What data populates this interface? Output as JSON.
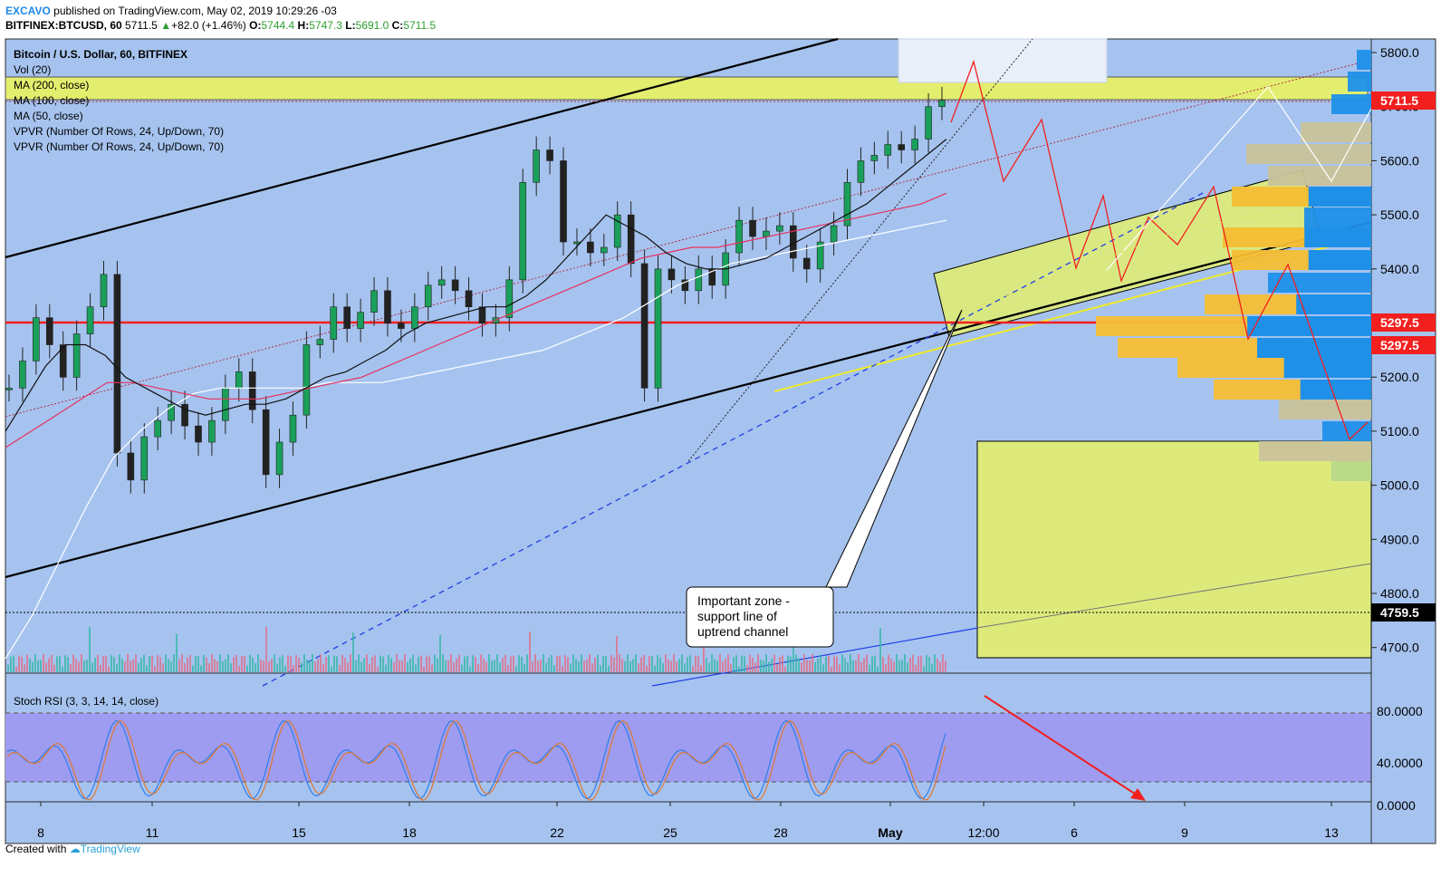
{
  "header": {
    "author": "EXCAVO",
    "published": "published on TradingView.com, May 02, 2019 10:29:26 -03",
    "symbol": "BITFINEX:BTCUSD, 60",
    "last": "5711.5",
    "change": "+82.0 (+1.46%)",
    "open_label": "O:",
    "open": "5744.4",
    "high_label": "H:",
    "high": "5747.3",
    "low_label": "L:",
    "low": "5691.0",
    "close_label": "C:",
    "close": "5711.5"
  },
  "legend": [
    "Bitcoin / U.S. Dollar, 60, BITFINEX",
    "Vol (20)",
    "MA (200, close)",
    "MA (100, close)",
    "MA (50, close)",
    "VPVR (Number Of Rows, 24, Up/Down, 70)",
    "VPVR (Number Of Rows, 24, Up/Down, 70)"
  ],
  "rsi_label": "Stoch RSI (3, 3, 14, 14, close)",
  "annotation": {
    "line1": "Important zone -",
    "line2": "support line of",
    "line3": "uptrend channel"
  },
  "price_tags": [
    {
      "value": "5711.5",
      "color": "#f21f1f"
    },
    {
      "value": "5297.5",
      "color": "#f21f1f"
    },
    {
      "value": "5297.5",
      "color": "#f21f1f"
    },
    {
      "value": "4759.5",
      "color": "#000000"
    }
  ],
  "footer": {
    "created": "Created with",
    "brand": "TradingView"
  },
  "colors": {
    "background": "#a6c3ef",
    "zone": "#e6ef6a",
    "support": "#f21f1f",
    "channel": "#000000",
    "vp_up": "#1e90e8",
    "vp_down": "#f5be34"
  },
  "chart_data": {
    "type": "line",
    "title": "Bitcoin / U.S. Dollar, 60, BITFINEX",
    "x_ticks": [
      "8",
      "11",
      "15",
      "18",
      "22",
      "25",
      "28",
      "May",
      "12:00",
      "6",
      "9",
      "13"
    ],
    "y_ticks": [
      "5800.0",
      "5700.0",
      "5600.0",
      "5500.0",
      "5400.0",
      "5300.0",
      "5200.0",
      "5100.0",
      "5000.0",
      "4900.0",
      "4800.0",
      "4700.0"
    ],
    "ylim": [
      4620,
      5830
    ],
    "rsi_ticks": [
      "80.0000",
      "40.0000",
      "0.0000"
    ],
    "rsi_ylim": [
      0,
      100
    ],
    "series": [
      {
        "values": [
          5180,
          5230,
          5310,
          5260,
          5200,
          5280,
          5330,
          5390,
          5060,
          5010,
          5090,
          5120,
          5150,
          5110,
          5080,
          5120,
          5180,
          5210,
          5140,
          5020,
          5080,
          5130,
          5260,
          5270,
          5330,
          5290,
          5320,
          5360,
          5300,
          5290,
          5330,
          5370,
          5380,
          5360,
          5330,
          5300,
          5310,
          5380,
          5560,
          5620,
          5600,
          5450,
          5450,
          5430,
          5440,
          5500,
          5410,
          5180,
          5400,
          5380,
          5360,
          5400,
          5370,
          5430,
          5490,
          5460,
          5470,
          5480,
          5420,
          5400,
          5450,
          5480,
          5560,
          5600,
          5610,
          5630,
          5620,
          5640,
          5700,
          5711.5
        ]
      },
      {
        "name": "MA (50, close)",
        "values": [
          5100,
          5160,
          5220,
          5260,
          5260,
          5240,
          5200,
          5180,
          5160,
          5140,
          5130,
          5140,
          5150,
          5150,
          5160,
          5180,
          5200,
          5210,
          5230,
          5250,
          5280,
          5300,
          5310,
          5320,
          5330,
          5330,
          5350,
          5380,
          5420,
          5460,
          5500,
          5480,
          5460,
          5430,
          5410,
          5400,
          5400,
          5410,
          5420,
          5440,
          5460,
          5480,
          5500,
          5520,
          5550,
          5580,
          5610,
          5640
        ]
      },
      {
        "name": "MA (100, close)",
        "values": [
          5070,
          5100,
          5130,
          5160,
          5190,
          5190,
          5180,
          5170,
          5160,
          5160,
          5160,
          5170,
          5180,
          5190,
          5200,
          5220,
          5240,
          5260,
          5280,
          5300,
          5320,
          5340,
          5360,
          5380,
          5400,
          5420,
          5430,
          5440,
          5440,
          5450,
          5460,
          5470,
          5480,
          5490,
          5500,
          5510,
          5520,
          5540
        ]
      },
      {
        "name": "MA (200, close)",
        "values": [
          4680,
          4760,
          4860,
          4960,
          5050,
          5100,
          5140,
          5170,
          5180,
          5180,
          5180,
          5180,
          5190,
          5190,
          5190,
          5200,
          5210,
          5220,
          5230,
          5240,
          5250,
          5270,
          5290,
          5310,
          5340,
          5370,
          5390,
          5410,
          5420,
          5430,
          5440,
          5450,
          5460,
          5470,
          5480,
          5490
        ]
      }
    ],
    "horizontal_levels": [
      5711.5,
      5297.5,
      4759.5
    ]
  }
}
